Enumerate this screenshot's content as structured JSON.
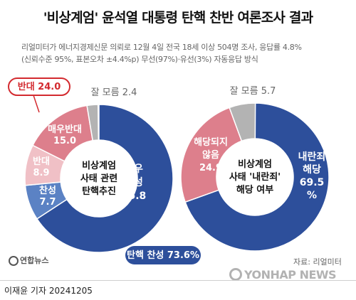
{
  "header": {
    "title": "'비상계엄' 윤석열 대통령 탄핵 찬반 여론조사 결과",
    "subtitle_line1": "리얼미터가 에너지경제신문 의뢰로 12월 4일 전국 18세 이상 504명 조사, 응답률 4.8%",
    "subtitle_line2": "(신뢰수준 95%, 표본오차 ±4.4%p) 무선(97%)·유선(3%) 자동응답 방식"
  },
  "footer": {
    "source": "자료: 리얼미터",
    "byline": "이재윤 기자  20241205",
    "brand": "연합뉴스",
    "watermark": "YONHAP NEWS"
  },
  "colors": {
    "navy": "#2d4f9b",
    "pink": "#dd7f8c",
    "light_pink": "#f0c0c6",
    "mid_blue": "#5b82c4",
    "gray": "#b3b3b3",
    "red_callout": "#d32a2f"
  },
  "chart_data": [
    {
      "type": "pie",
      "center_label": [
        "비상계엄",
        "사태 관련",
        "탄핵추진"
      ],
      "series": [
        {
          "name": "매우 찬성",
          "value": 65.8,
          "label_lines": [
            "매우",
            "찬성",
            "65.8"
          ]
        },
        {
          "name": "찬성",
          "value": 7.7,
          "label_lines": [
            "찬성",
            "7.7"
          ]
        },
        {
          "name": "반대",
          "value": 8.9,
          "label_lines": [
            "반대",
            "8.9"
          ]
        },
        {
          "name": "매우반대",
          "value": 15.0,
          "label_lines": [
            "매우반대",
            "15.0"
          ]
        },
        {
          "name": "잘 모름",
          "value": 2.4,
          "label_lines": [
            "잘 모름 2.4"
          ]
        }
      ],
      "callouts": [
        {
          "text": "반대 24.0"
        },
        {
          "text": "탄핵 찬성 73.6%"
        }
      ]
    },
    {
      "type": "pie",
      "center_label": [
        "비상계엄",
        "사태 '내란죄'",
        "해당 여부"
      ],
      "series": [
        {
          "name": "내란죄 해당",
          "value": 69.5,
          "label_lines": [
            "내란죄",
            "해당",
            "69.5",
            "%"
          ]
        },
        {
          "name": "해당되지 않음",
          "value": 24.9,
          "label_lines": [
            "해당되지",
            "않음",
            "24.9"
          ]
        },
        {
          "name": "잘 모름",
          "value": 5.7,
          "label_lines": [
            "잘 모름 5.7"
          ]
        }
      ]
    }
  ]
}
